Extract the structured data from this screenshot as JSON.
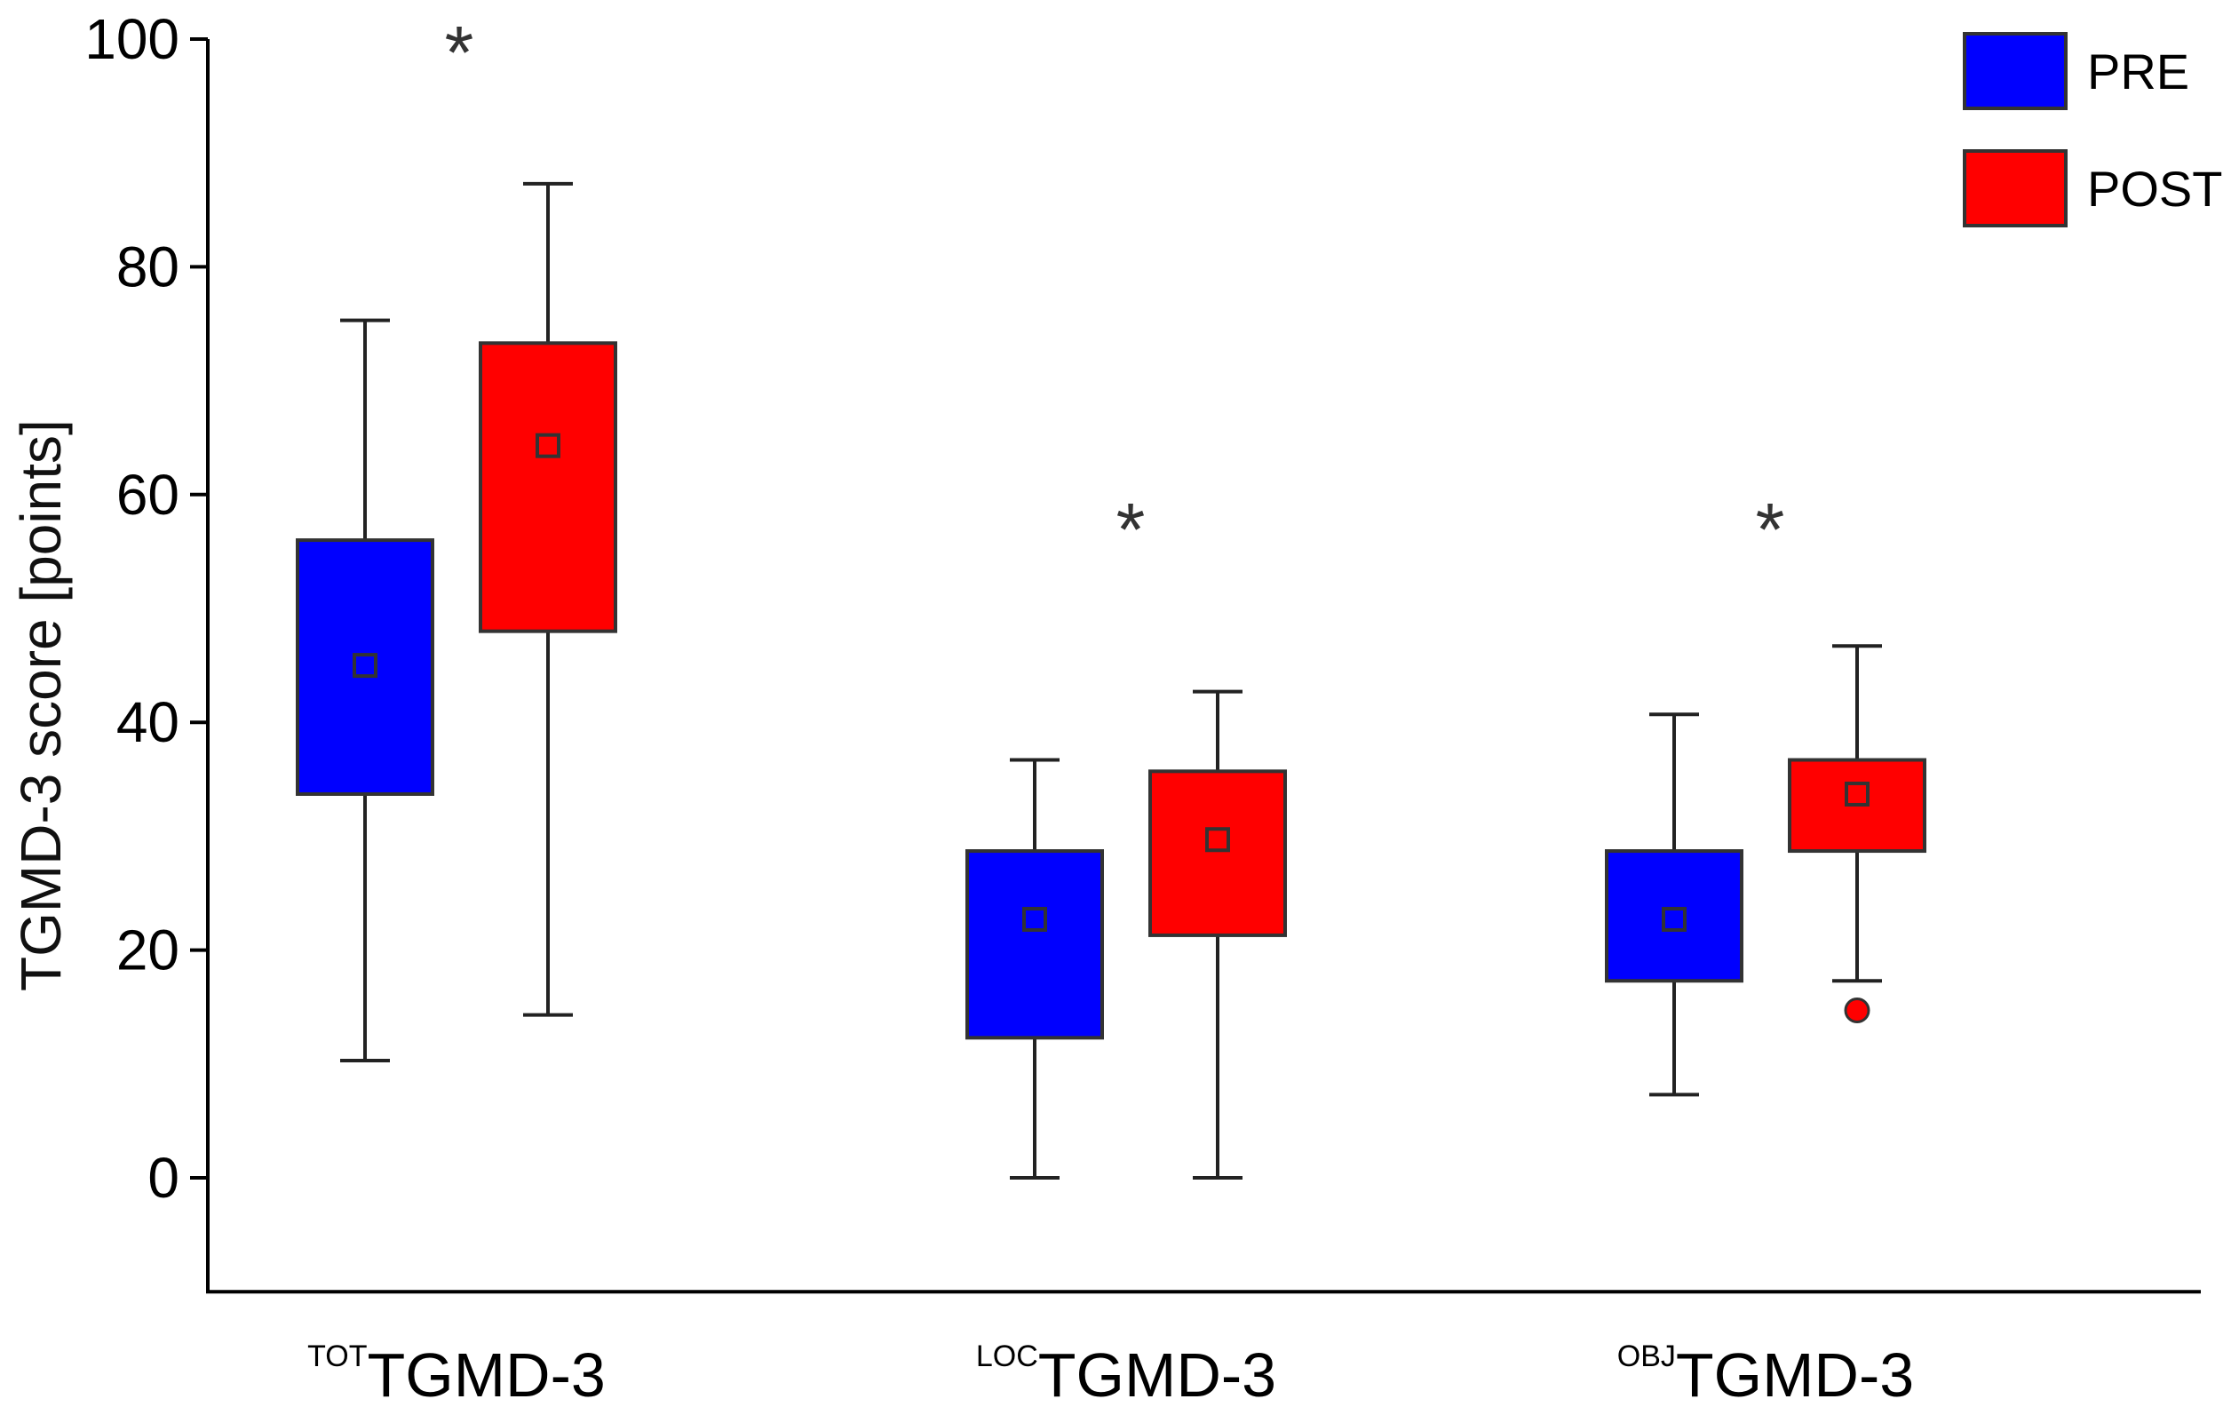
{
  "chart_data": {
    "type": "box",
    "title": "",
    "ylabel": "TGMD-3 score [points]",
    "xlabel": "",
    "ylim": [
      -10,
      100
    ],
    "yticks": [
      0,
      20,
      40,
      60,
      80,
      100
    ],
    "categories": [
      {
        "sup": "TOT",
        "main": "TGMD-3",
        "significance": "*"
      },
      {
        "sup": "LOC",
        "main": "TGMD-3",
        "significance": "*"
      },
      {
        "sup": "OBJ",
        "main": "TGMD-3",
        "significance": "*"
      }
    ],
    "series": [
      {
        "name": "PRE",
        "color": "#0000ff",
        "boxes": [
          {
            "min": 10.3,
            "q1": 33.7,
            "median": 45,
            "q3": 56,
            "max": 75.3,
            "mean": 45,
            "outliers": []
          },
          {
            "min": 0,
            "q1": 12.3,
            "median": 22.7,
            "q3": 28.7,
            "max": 36.7,
            "mean": 22.7,
            "outliers": []
          },
          {
            "min": 7.3,
            "q1": 17.3,
            "median": 22.7,
            "q3": 28.7,
            "max": 40.7,
            "mean": 22.7,
            "outliers": []
          }
        ]
      },
      {
        "name": "POST",
        "color": "#ff0000",
        "boxes": [
          {
            "min": 14.3,
            "q1": 48,
            "median": 64.3,
            "q3": 73.3,
            "max": 87.3,
            "mean": 64.3,
            "outliers": []
          },
          {
            "min": 0,
            "q1": 21.3,
            "median": 29.7,
            "q3": 35.7,
            "max": 42.7,
            "mean": 29.7,
            "outliers": []
          },
          {
            "min": 17.3,
            "q1": 28.7,
            "median": 33.7,
            "q3": 36.7,
            "max": 46.7,
            "mean": 33.7,
            "outliers": [
              14.7
            ]
          }
        ]
      }
    ],
    "legend": {
      "position": "top-right",
      "entries": [
        "PRE",
        "POST"
      ]
    }
  }
}
